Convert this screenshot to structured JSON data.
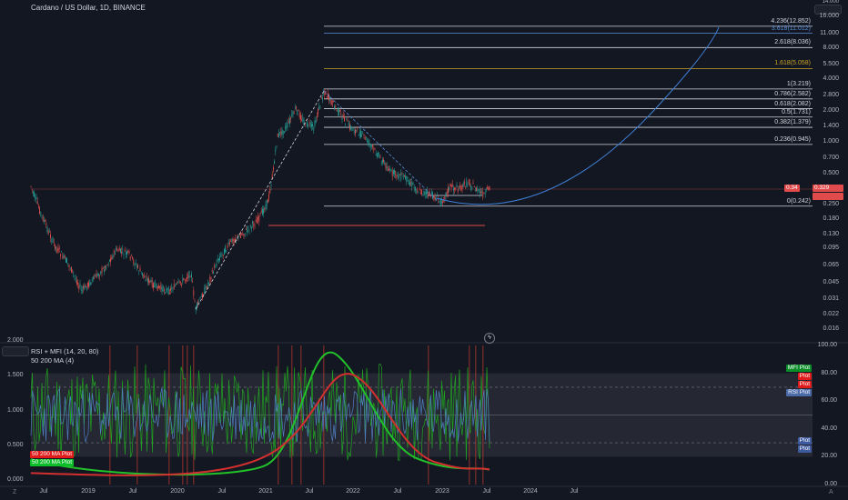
{
  "header": {
    "title": "Cardano / US Dollar, 1D, BINANCE"
  },
  "indicator": {
    "title": "RSI + MFI (14, 20, 80)",
    "subtitle": "50 200 MA (4)"
  },
  "corners": {
    "bottom_left": "Z",
    "bottom_right": "A"
  },
  "price_axis": {
    "ticks": [
      "16.000",
      "11.000",
      "8.000",
      "5.500",
      "4.000",
      "2.800",
      "2.000",
      "1.400",
      "1.000",
      "0.700",
      "0.500",
      "0.350",
      "0.250",
      "0.180",
      "0.130",
      "0.095",
      "0.065",
      "0.045",
      "0.031",
      "0.022",
      "0.016"
    ],
    "top_partial": "14.000",
    "current_price": "0.329",
    "current_label": "0.34"
  },
  "fib_levels": [
    {
      "label": "4.236(12.852)",
      "value": 12.852,
      "color": "#d1d4dc"
    },
    {
      "label": "3.618(11.012)",
      "value": 11.012,
      "color": "#5b8dd6"
    },
    {
      "label": "2.618(8.036)",
      "value": 8.036,
      "color": "#d1d4dc"
    },
    {
      "label": "1.618(5.058)",
      "value": 5.058,
      "color": "#c9a227"
    },
    {
      "label": "1(3.219)",
      "value": 3.219,
      "color": "#d1d4dc"
    },
    {
      "label": "0.786(2.582)",
      "value": 2.582,
      "color": "#d1d4dc"
    },
    {
      "label": "0.618(2.082)",
      "value": 2.082,
      "color": "#d1d4dc"
    },
    {
      "label": "0.5(1.731)",
      "value": 1.731,
      "color": "#d1d4dc"
    },
    {
      "label": "0.382(1.379)",
      "value": 1.379,
      "color": "#d1d4dc"
    },
    {
      "label": "0.236(0.945)",
      "value": 0.945,
      "color": "#d1d4dc"
    },
    {
      "label": "0(0.242)",
      "value": 0.242,
      "color": "#d1d4dc"
    }
  ],
  "indicator_axis": {
    "left_ticks": [
      "2.000",
      "1.500",
      "1.000",
      "0.500",
      "0.000"
    ],
    "right_ticks": [
      "100.00",
      "80.00",
      "60.00",
      "40.00",
      "20.00",
      "0.00"
    ]
  },
  "indicator_tags": [
    {
      "text": "MFI Plot",
      "color": "#0b8d29"
    },
    {
      "text": "Plot",
      "color": "#e01b1b"
    },
    {
      "text": "Plot",
      "color": "#e01b1b"
    },
    {
      "text": "RSI Plot",
      "color": "#4a6aa8"
    },
    {
      "text": "Plot",
      "color": "#3d5a9e"
    },
    {
      "text": "Plot",
      "color": "#3d5a9e"
    }
  ],
  "ma_tags": [
    {
      "text": "50 200 MA Plot",
      "color": "#e01b1b"
    },
    {
      "text": "50 200 MA Plot",
      "color": "#0bbd29"
    }
  ],
  "time_axis": [
    "Jul",
    "2019",
    "Jul",
    "2020",
    "Jul",
    "2021",
    "Jul",
    "2022",
    "Jul",
    "2023",
    "Jul",
    "2024",
    "Jul"
  ],
  "colors": {
    "background": "#131722",
    "up": "#26a69a",
    "down": "#ef5350",
    "arc": "#3f7fd6",
    "ma_red": "#d32f2f",
    "ma_green": "#22c12a",
    "rsi": "#4f7dc0",
    "mfi": "#1fa31f"
  }
}
